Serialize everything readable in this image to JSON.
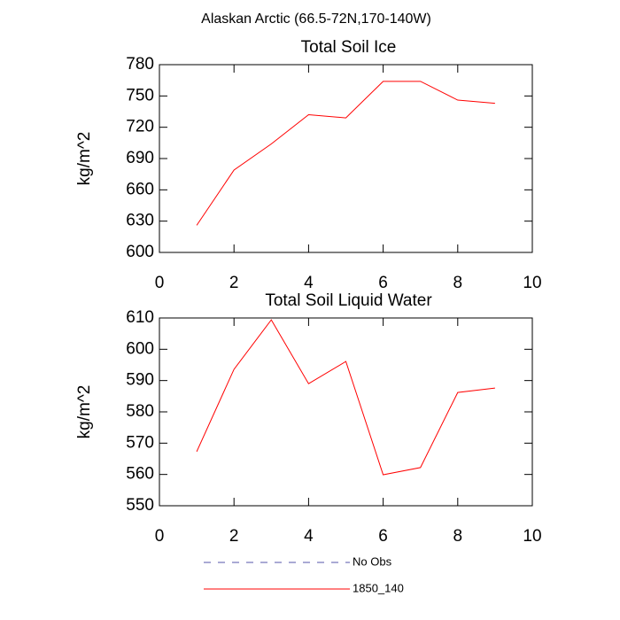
{
  "title": "Alaskan Arctic (66.5-72N,170-140W)",
  "chart_data": [
    {
      "type": "line",
      "title": "Total Soil Ice",
      "y_label": "kg/m^2",
      "x": [
        1,
        2,
        3,
        4,
        5,
        6,
        7,
        8,
        9
      ],
      "series": [
        {
          "color": "#ff0000",
          "values": [
            626,
            679,
            704,
            732,
            729,
            764,
            764,
            746,
            743
          ]
        }
      ],
      "xlim": [
        0,
        10
      ],
      "xticks": [
        0,
        2,
        4,
        6,
        8,
        10
      ],
      "ylim": [
        600,
        780
      ],
      "yticks": [
        600,
        630,
        660,
        690,
        720,
        750,
        780
      ]
    },
    {
      "type": "line",
      "title": "Total Soil Liquid Water",
      "y_label": "kg/m^2",
      "x": [
        1,
        2,
        3,
        4,
        5,
        6,
        7,
        8,
        9
      ],
      "series": [
        {
          "color": "#ff0000",
          "values": [
            567.3,
            593.6,
            609.4,
            589,
            596.1,
            559.9,
            562.2,
            586.2,
            587.6
          ]
        }
      ],
      "xlim": [
        0,
        10
      ],
      "xticks": [
        0,
        2,
        4,
        6,
        8,
        10
      ],
      "ylim": [
        550,
        610
      ],
      "yticks": [
        550,
        560,
        570,
        580,
        590,
        600,
        610
      ]
    }
  ],
  "legend": [
    {
      "name": "No Obs",
      "color": "#5555aa",
      "dashed": true
    },
    {
      "name": "1850_140",
      "color": "#ff0000",
      "dashed": false
    }
  ]
}
